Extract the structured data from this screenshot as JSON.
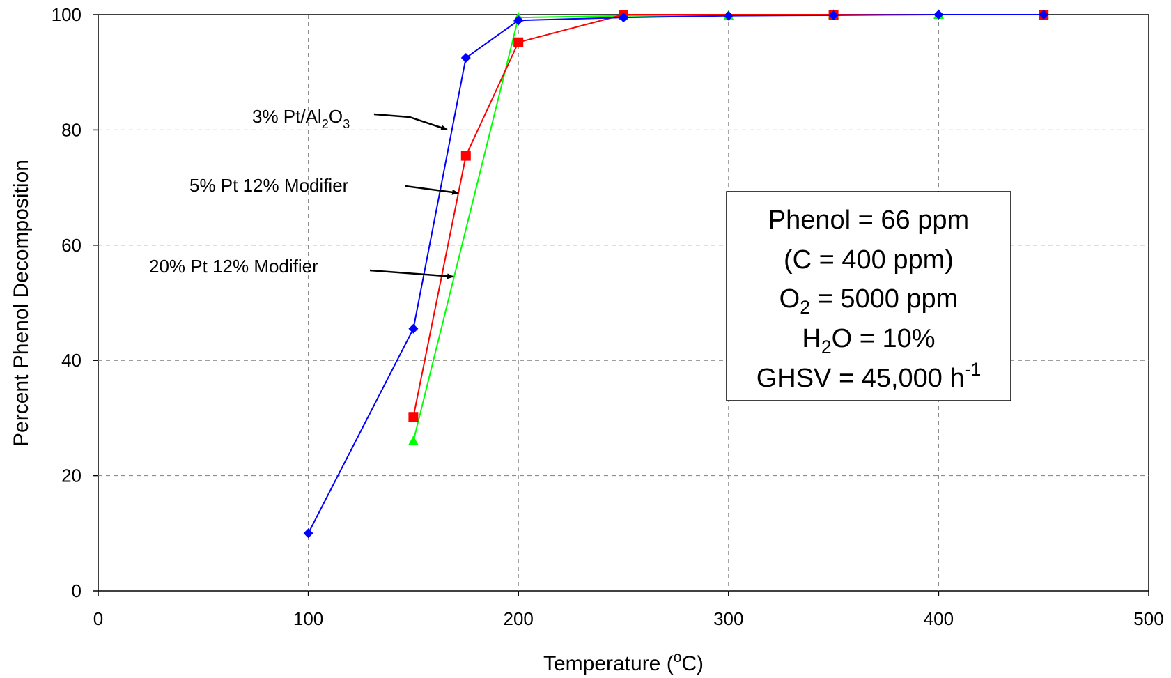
{
  "chart_data": {
    "type": "line",
    "title": "",
    "xlabel": "Temperature (°C)",
    "xlabel_parts": {
      "main": "Temperature (",
      "sup": "o",
      "tail": "C)"
    },
    "ylabel": "Percent Phenol Decomposition",
    "xlim": [
      0,
      500
    ],
    "ylim": [
      0,
      100
    ],
    "x_ticks": [
      "0",
      "100",
      "200",
      "300",
      "400",
      "500"
    ],
    "y_ticks": [
      "0",
      "20",
      "40",
      "60",
      "80",
      "100"
    ],
    "grid": true,
    "series": [
      {
        "name": "20% Pt 12% Modifier",
        "color": "#00ff00",
        "marker": "triangle",
        "x": [
          150,
          200,
          250,
          300,
          350,
          400,
          450
        ],
        "y": [
          26,
          99.5,
          99.8,
          99.8,
          100,
          100,
          100
        ]
      },
      {
        "name": "5% Pt 12% Modifier",
        "color": "#ff0000",
        "marker": "square",
        "x": [
          150,
          175,
          200,
          250,
          350,
          450
        ],
        "y": [
          30.2,
          75.5,
          95.2,
          100,
          100,
          100
        ]
      },
      {
        "name": "3% Pt/Al2O3",
        "color": "#0000ff",
        "marker": "diamond",
        "x": [
          100,
          150,
          175,
          200,
          250,
          300,
          350,
          400,
          450
        ],
        "y": [
          10,
          45.5,
          92.5,
          99,
          99.5,
          99.8,
          99.9,
          100,
          100
        ]
      }
    ],
    "annotations": {
      "pt3": {
        "pre": "3% Pt/Al",
        "s1": "2",
        "mid": "O",
        "s2": "3"
      },
      "pt5": "5% Pt 12% Modifier",
      "pt20": "20% Pt 12% Modifier"
    },
    "conditions_box": {
      "line1": "Phenol = 66 ppm",
      "line2": "(C = 400 ppm)",
      "line3": {
        "pre": "O",
        "sub": "2",
        "post": " = 5000 ppm"
      },
      "line4": {
        "pre": "H",
        "sub": "2",
        "post": "O = 10%"
      },
      "line5": {
        "pre": "GHSV = 45,000 h",
        "sup": "-1"
      }
    }
  }
}
